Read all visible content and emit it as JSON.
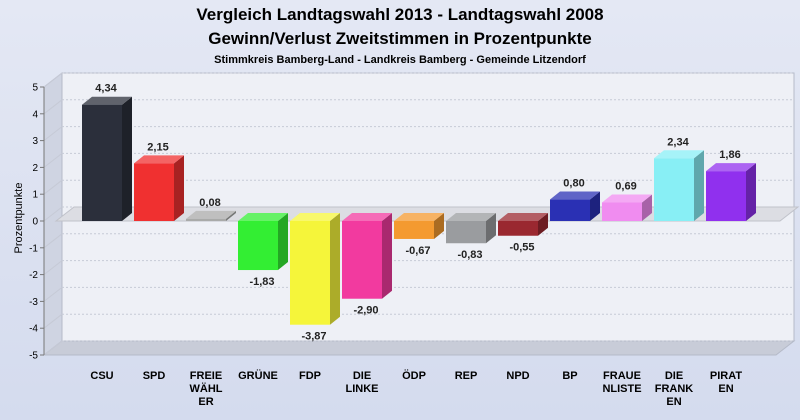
{
  "header": {
    "title_line1": "Vergleich Landtagswahl 2013 - Landtagswahl 2008",
    "title_line2": "Gewinn/Verlust Zweitstimmen in Prozentpunkte",
    "subtitle": "Stimmkreis Bamberg-Land - Landkreis Bamberg - Gemeinde Litzendorf"
  },
  "chart_data": {
    "type": "bar",
    "title": "Vergleich Landtagswahl 2013 - Landtagswahl 2008 Gewinn/Verlust Zweitstimmen in Prozentpunkte",
    "subtitle": "Stimmkreis Bamberg-Land - Landkreis Bamberg - Gemeinde Litzendorf",
    "ylabel": "Prozentpunkte",
    "xlabel": "",
    "ylim": [
      -5,
      5
    ],
    "yticks": [
      "5",
      "4",
      "3",
      "2",
      "1",
      "0",
      "-1",
      "-2",
      "-3",
      "-4",
      "-5"
    ],
    "grid": true,
    "categories": [
      [
        "CSU"
      ],
      [
        "SPD"
      ],
      [
        "FREIE",
        "WÄHL",
        "ER"
      ],
      [
        "GRÜNE"
      ],
      [
        "FDP"
      ],
      [
        "DIE",
        "LINKE"
      ],
      [
        "ÖDP"
      ],
      [
        "REP"
      ],
      [
        "NPD"
      ],
      [
        "BP"
      ],
      [
        "FRAUE",
        "NLISTE"
      ],
      [
        "DIE",
        "FRANK",
        "EN"
      ],
      [
        "PIRAT",
        "EN"
      ]
    ],
    "values": [
      4.34,
      2.15,
      0.08,
      -1.83,
      -3.87,
      -2.9,
      -0.67,
      -0.83,
      -0.55,
      0.8,
      0.69,
      2.34,
      1.86
    ],
    "labels": [
      "4,34",
      "2,15",
      "0,08",
      "-1,83",
      "-3,87",
      "-2,90",
      "-0,67",
      "-0,83",
      "-0,55",
      "0,80",
      "0,69",
      "2,34",
      "1,86"
    ],
    "colors": [
      "#2b2f3b",
      "#f03030",
      "#a9aaa9",
      "#33ee33",
      "#f5f53a",
      "#f23a9f",
      "#f49a30",
      "#9a9c9f",
      "#9a2830",
      "#2a30b4",
      "#f08cf0",
      "#88eff5",
      "#9030ee"
    ]
  }
}
